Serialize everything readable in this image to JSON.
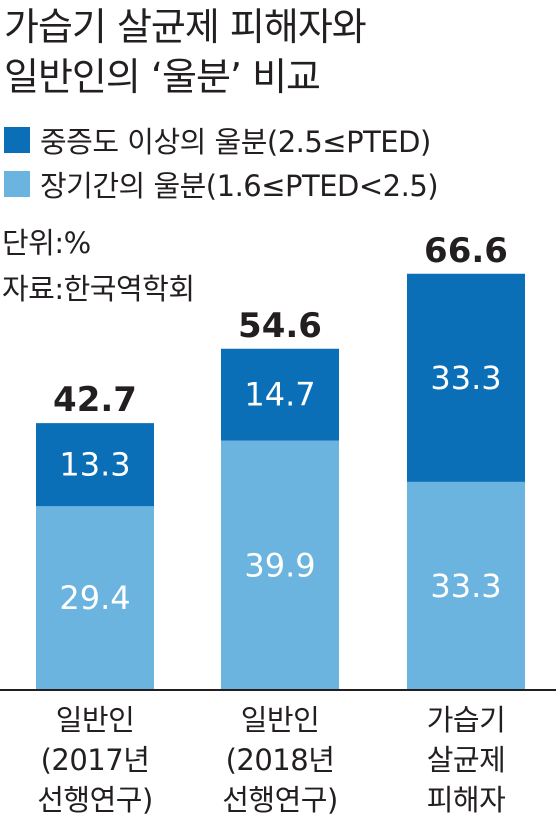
{
  "header": {
    "title_line1": "가습기 살균제 피해자와",
    "title_line2": "일반인의 ‘울분’ 비교"
  },
  "notes": {
    "unit": "단위:%",
    "source": "자료:한국역학회"
  },
  "colors": {
    "severe": "#0b6fb8",
    "longterm": "#6ab4df",
    "axis": "#231f20"
  },
  "chart_data": {
    "type": "bar",
    "stacked": true,
    "categories": [
      [
        "일반인",
        "(2017년",
        "선행연구)"
      ],
      [
        "일반인",
        "(2018년",
        "선행연구)"
      ],
      [
        "가습기",
        "살균제",
        "피해자"
      ]
    ],
    "series": [
      {
        "name": "장기간의 울분(1.6≤PTED<2.5)",
        "values": [
          "29.4",
          "39.9",
          "33.3"
        ]
      },
      {
        "name": "중증도 이상의 울분(2.5≤PTED)",
        "values": [
          "13.3",
          "14.7",
          "33.3"
        ]
      }
    ],
    "totals": [
      "42.7",
      "54.6",
      "66.6"
    ],
    "ylim": [
      0,
      72
    ],
    "legend_position": "top-left",
    "grid": false
  }
}
